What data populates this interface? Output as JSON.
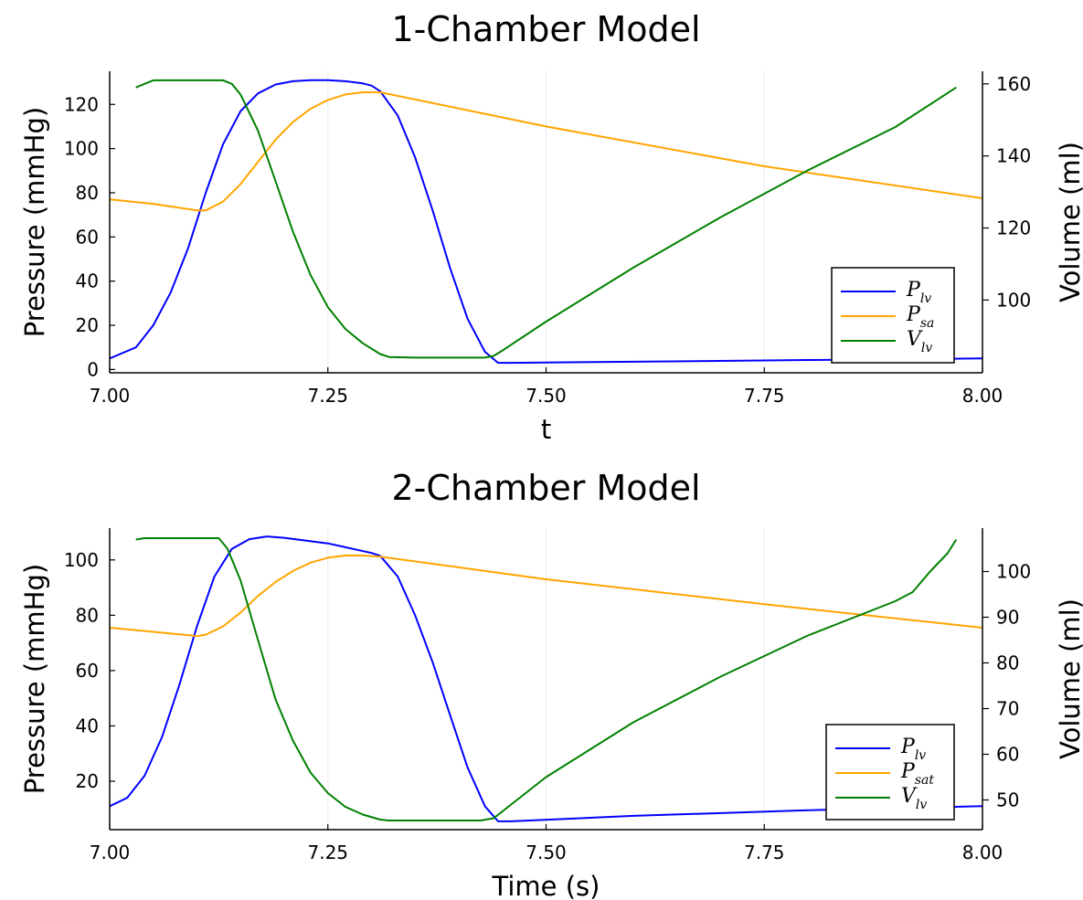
{
  "colors": {
    "P_lv": "#0000ff",
    "P_art": "#ffa500",
    "V_lv": "#008000",
    "grid": "#ebebeb",
    "axis": "#000000"
  },
  "chart_data": [
    {
      "type": "line",
      "title": "1-Chamber Model",
      "xlabel": "t",
      "ylabel": "Pressure (mmHg)",
      "y2label": "Volume (ml)",
      "xlim": [
        7.0,
        8.0
      ],
      "ylim": [
        -1.5,
        135
      ],
      "y2lim": [
        79.8,
        163.5
      ],
      "xticks": [
        "7.00",
        "7.25",
        "7.50",
        "7.75",
        "8.00"
      ],
      "yticks": [
        "0",
        "20",
        "40",
        "60",
        "80",
        "100",
        "120"
      ],
      "y2ticks": [
        "100",
        "120",
        "140",
        "160"
      ],
      "grid": true,
      "legend_position": "bottom-right",
      "series": [
        {
          "name": "P",
          "sub": "lv",
          "axis": "left",
          "color_key": "P_lv",
          "x": [
            7.0,
            7.03,
            7.05,
            7.07,
            7.09,
            7.11,
            7.13,
            7.15,
            7.17,
            7.19,
            7.21,
            7.23,
            7.25,
            7.27,
            7.29,
            7.3,
            7.31,
            7.33,
            7.35,
            7.37,
            7.39,
            7.41,
            7.43,
            7.445,
            7.46,
            7.6,
            7.8,
            8.0
          ],
          "y": [
            5,
            10,
            20,
            35,
            55,
            80,
            102,
            117,
            125,
            129,
            130.5,
            131,
            131,
            130.5,
            129.5,
            128.5,
            126,
            115,
            96,
            72,
            46,
            23,
            8,
            3,
            3,
            3.5,
            4.3,
            5
          ]
        },
        {
          "name": "P",
          "sub": "sa",
          "axis": "left",
          "color_key": "P_art",
          "x": [
            7.0,
            7.05,
            7.1,
            7.11,
            7.13,
            7.15,
            7.17,
            7.19,
            7.21,
            7.23,
            7.25,
            7.27,
            7.29,
            7.31,
            7.5,
            7.75,
            8.0
          ],
          "y": [
            77,
            75,
            72,
            72,
            76,
            84,
            94,
            104,
            112,
            118,
            122,
            124.5,
            125.5,
            125.5,
            110,
            92,
            77.5
          ]
        },
        {
          "name": "V",
          "sub": "lv",
          "axis": "right",
          "color_key": "V_lv",
          "x": [
            7.03,
            7.05,
            7.07,
            7.1,
            7.13,
            7.14,
            7.15,
            7.17,
            7.19,
            7.21,
            7.23,
            7.25,
            7.27,
            7.29,
            7.31,
            7.32,
            7.35,
            7.4,
            7.43,
            7.44,
            7.45,
            7.5,
            7.6,
            7.7,
            7.8,
            7.9,
            7.97
          ],
          "y": [
            159,
            161,
            161,
            161,
            161,
            160,
            157,
            147,
            133,
            119,
            107,
            98,
            92,
            88,
            85,
            84.2,
            84,
            84,
            84,
            84.5,
            86,
            94,
            109,
            123,
            136,
            148,
            159
          ]
        }
      ]
    },
    {
      "type": "line",
      "title": "2-Chamber Model",
      "xlabel": "Time (s)",
      "ylabel": "Pressure (mmHg)",
      "y2label": "Volume (ml)",
      "xlim": [
        7.0,
        8.0
      ],
      "ylim": [
        2.5,
        111.5
      ],
      "y2lim": [
        43.5,
        109.5
      ],
      "xticks": [
        "7.00",
        "7.25",
        "7.50",
        "7.75",
        "8.00"
      ],
      "yticks": [
        "20",
        "40",
        "60",
        "80",
        "100"
      ],
      "y2ticks": [
        "50",
        "60",
        "70",
        "80",
        "90",
        "100"
      ],
      "grid": true,
      "legend_position": "bottom-right",
      "series": [
        {
          "name": "P",
          "sub": "lv",
          "axis": "left",
          "color_key": "P_lv",
          "x": [
            7.0,
            7.02,
            7.04,
            7.06,
            7.08,
            7.1,
            7.12,
            7.14,
            7.16,
            7.18,
            7.2,
            7.25,
            7.3,
            7.31,
            7.33,
            7.35,
            7.37,
            7.39,
            7.41,
            7.43,
            7.445,
            7.46,
            7.6,
            7.8,
            8.0
          ],
          "y": [
            11,
            14,
            22,
            36,
            55,
            76,
            94,
            104,
            107.5,
            108.5,
            108,
            106,
            102.5,
            101.5,
            94,
            80,
            63,
            44,
            25,
            11,
            5.5,
            5.5,
            7.5,
            9.5,
            11
          ]
        },
        {
          "name": "P",
          "sub": "sat",
          "axis": "left",
          "color_key": "P_art",
          "x": [
            7.0,
            7.05,
            7.1,
            7.11,
            7.13,
            7.15,
            7.17,
            7.19,
            7.21,
            7.23,
            7.25,
            7.27,
            7.29,
            7.31,
            7.5,
            7.75,
            8.0
          ],
          "y": [
            75.5,
            74,
            72.5,
            73,
            76,
            81,
            87,
            92,
            96,
            99,
            100.8,
            101.6,
            101.6,
            101.2,
            93,
            84,
            75.5
          ]
        },
        {
          "name": "V",
          "sub": "lv",
          "axis": "right",
          "color_key": "V_lv",
          "x": [
            7.03,
            7.04,
            7.06,
            7.1,
            7.125,
            7.135,
            7.15,
            7.17,
            7.19,
            7.21,
            7.23,
            7.25,
            7.27,
            7.29,
            7.31,
            7.32,
            7.35,
            7.4,
            7.425,
            7.44,
            7.46,
            7.5,
            7.6,
            7.7,
            7.8,
            7.9,
            7.92,
            7.94,
            7.96,
            7.97
          ],
          "y": [
            107,
            107.3,
            107.3,
            107.3,
            107.3,
            105,
            98,
            85,
            72,
            63,
            56,
            51.5,
            48.5,
            46.8,
            45.7,
            45.5,
            45.5,
            45.5,
            45.5,
            46,
            49,
            55,
            67,
            77,
            86,
            93.5,
            95.5,
            100,
            104,
            107
          ]
        }
      ]
    }
  ]
}
